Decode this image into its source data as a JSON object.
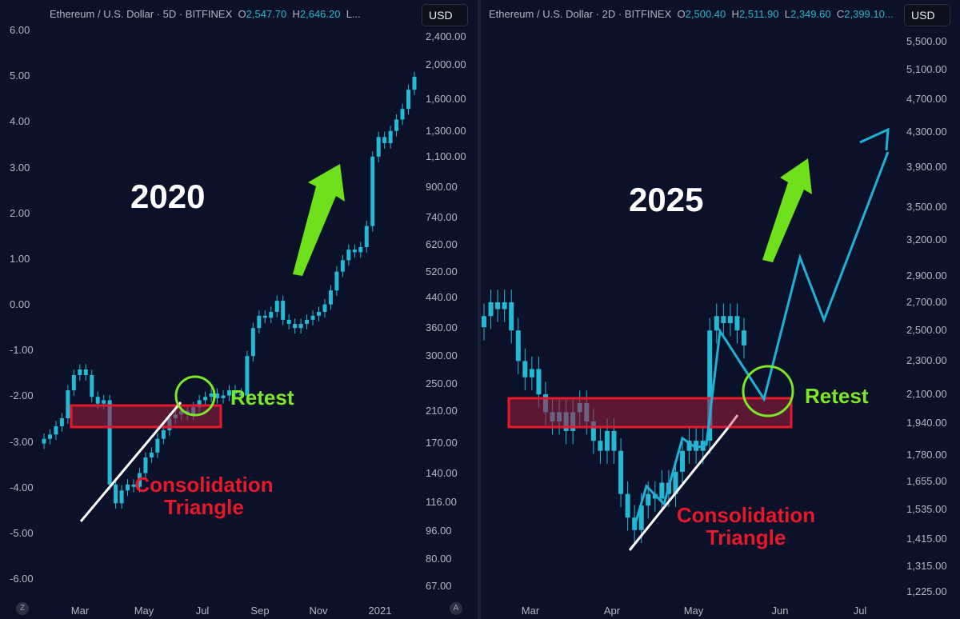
{
  "left": {
    "legend": {
      "symbol": "Ethereum / U.S. Dollar · 5D · BITFINEX",
      "o_label": "O",
      "o": "2,547.70",
      "h_label": "H",
      "h": "2,646.20",
      "rest": "L..."
    },
    "currency": "USD",
    "year_label": "2020",
    "annotations": {
      "retest": "Retest",
      "consolidation": "Consolidation",
      "triangle": "Triangle"
    },
    "corner_left": "Z",
    "corner_right": "A"
  },
  "right": {
    "legend": {
      "symbol": "Ethereum / U.S. Dollar · 2D · BITFINEX",
      "o_label": "O",
      "o": "2,500.40",
      "h_label": "H",
      "h": "2,511.90",
      "l_label": "L",
      "l": "2,349.60",
      "c_label": "C",
      "c": "2,399.10..."
    },
    "currency": "USD",
    "year_label": "2025",
    "annotations": {
      "retest": "Retest",
      "consolidation": "Consolidation",
      "triangle": "Triangle"
    }
  },
  "colors": {
    "candle": "#26b9d6",
    "zone": "#e8182b",
    "retest": "#7be62a",
    "projection": "#1fb0d6",
    "arrow": "#6fe11c"
  },
  "chart_data": [
    {
      "type": "candlestick",
      "title": "Ethereum / U.S. Dollar · 5D · BITFINEX (2020)",
      "scale": "log",
      "left_axis_ticks": [
        "6.00",
        "5.00",
        "4.00",
        "3.00",
        "2.00",
        "1.00",
        "0.00",
        "-1.00",
        "-2.00",
        "-3.00",
        "-4.00",
        "-5.00",
        "-6.00"
      ],
      "right_axis_ticks": [
        "2,400.00",
        "2,000.00",
        "1,600.00",
        "1,300.00",
        "1,100.00",
        "900.00",
        "740.00",
        "620.00",
        "520.00",
        "440.00",
        "360.00",
        "300.00",
        "250.00",
        "210.00",
        "170.00",
        "140.00",
        "116.00",
        "96.00",
        "80.00",
        "67.00"
      ],
      "x_ticks": [
        "Mar",
        "May",
        "Jul",
        "Sep",
        "Nov",
        "2021"
      ],
      "ylim": [
        67,
        2400
      ],
      "closes": [
        175,
        180,
        190,
        200,
        240,
        265,
        275,
        265,
        230,
        220,
        225,
        130,
        115,
        125,
        130,
        128,
        140,
        155,
        160,
        175,
        185,
        200,
        205,
        210,
        205,
        215,
        225,
        230,
        235,
        228,
        232,
        240,
        235,
        232,
        300,
        360,
        390,
        385,
        400,
        430,
        380,
        370,
        360,
        370,
        380,
        390,
        400,
        420,
        460,
        520,
        560,
        600,
        590,
        610,
        700,
        1100,
        1250,
        1200,
        1300,
        1400,
        1500,
        1700,
        1850
      ]
    },
    {
      "type": "candlestick",
      "title": "Ethereum / U.S. Dollar · 2D · BITFINEX (2025)",
      "scale": "log",
      "right_axis_ticks": [
        "5,500.00",
        "5,100.00",
        "4,700.00",
        "4,300.00",
        "3,900.00",
        "3,500.00",
        "3,200.00",
        "2,900.00",
        "2,700.00",
        "2,500.00",
        "2,300.00",
        "2,100.00",
        "1,940.00",
        "1,780.00",
        "1,655.00",
        "1,535.00",
        "1,415.00",
        "1,315.00",
        "1,225.00"
      ],
      "x_ticks": [
        "Mar",
        "Apr",
        "May",
        "Jun",
        "Jul"
      ],
      "ylim": [
        1225,
        5500
      ],
      "closes": [
        2600,
        2700,
        2650,
        2700,
        2500,
        2300,
        2200,
        2250,
        2100,
        2000,
        1950,
        2000,
        1900,
        2000,
        2050,
        1950,
        1850,
        1800,
        1900,
        1800,
        1600,
        1500,
        1450,
        1550,
        1600,
        1580,
        1650,
        1600,
        1700,
        1800,
        1850,
        1800,
        1850,
        2500,
        2600,
        2550,
        2600,
        2500,
        2400
      ]
    }
  ]
}
